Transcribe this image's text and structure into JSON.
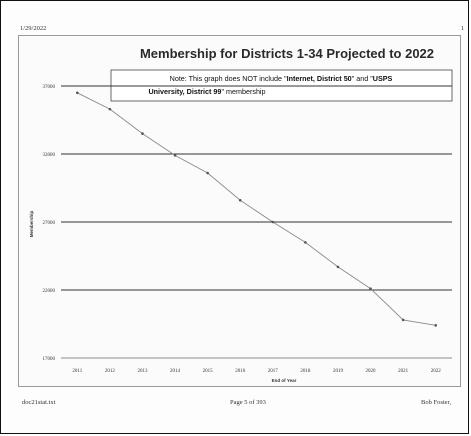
{
  "page": {
    "header_date": "1/29/2022",
    "header_right": "1",
    "footer_left": "doc21stat.txt",
    "footer_center": "Page 5 of 393",
    "footer_right": "Bob Foster,"
  },
  "note": {
    "line1_pre": "Note: This graph does NOT include \"",
    "line1_bold1": "Internet, District 50",
    "line1_mid": "\" and \"",
    "line1_bold2": "USPS",
    "line2_bold": "University, District 99",
    "line2_post": "\" membership"
  },
  "colors": {
    "line": "#8a8a8a",
    "marker": "#555555",
    "grid": "#333333"
  },
  "chart_data": {
    "type": "line",
    "title": "Membership for Districts 1-34 Projected to 2022",
    "xlabel": "End of Year",
    "ylabel": "Membership",
    "x": [
      2011,
      2012,
      2013,
      2014,
      2015,
      2016,
      2017,
      2018,
      2019,
      2020,
      2021,
      2022
    ],
    "categories": [
      "2011",
      "2012",
      "2013",
      "2014",
      "2015",
      "2016",
      "2017",
      "2018",
      "2019",
      "2020",
      "2021",
      "2022"
    ],
    "series": [
      {
        "values": [
          36500,
          35300,
          33500,
          31900,
          30600,
          28600,
          27000,
          25500,
          23700,
          22100,
          19800,
          19400
        ]
      }
    ],
    "ylim": [
      17000,
      37000
    ],
    "yticks": [
      "17000",
      "22000",
      "27000",
      "32000",
      "37000"
    ],
    "grid": true
  }
}
